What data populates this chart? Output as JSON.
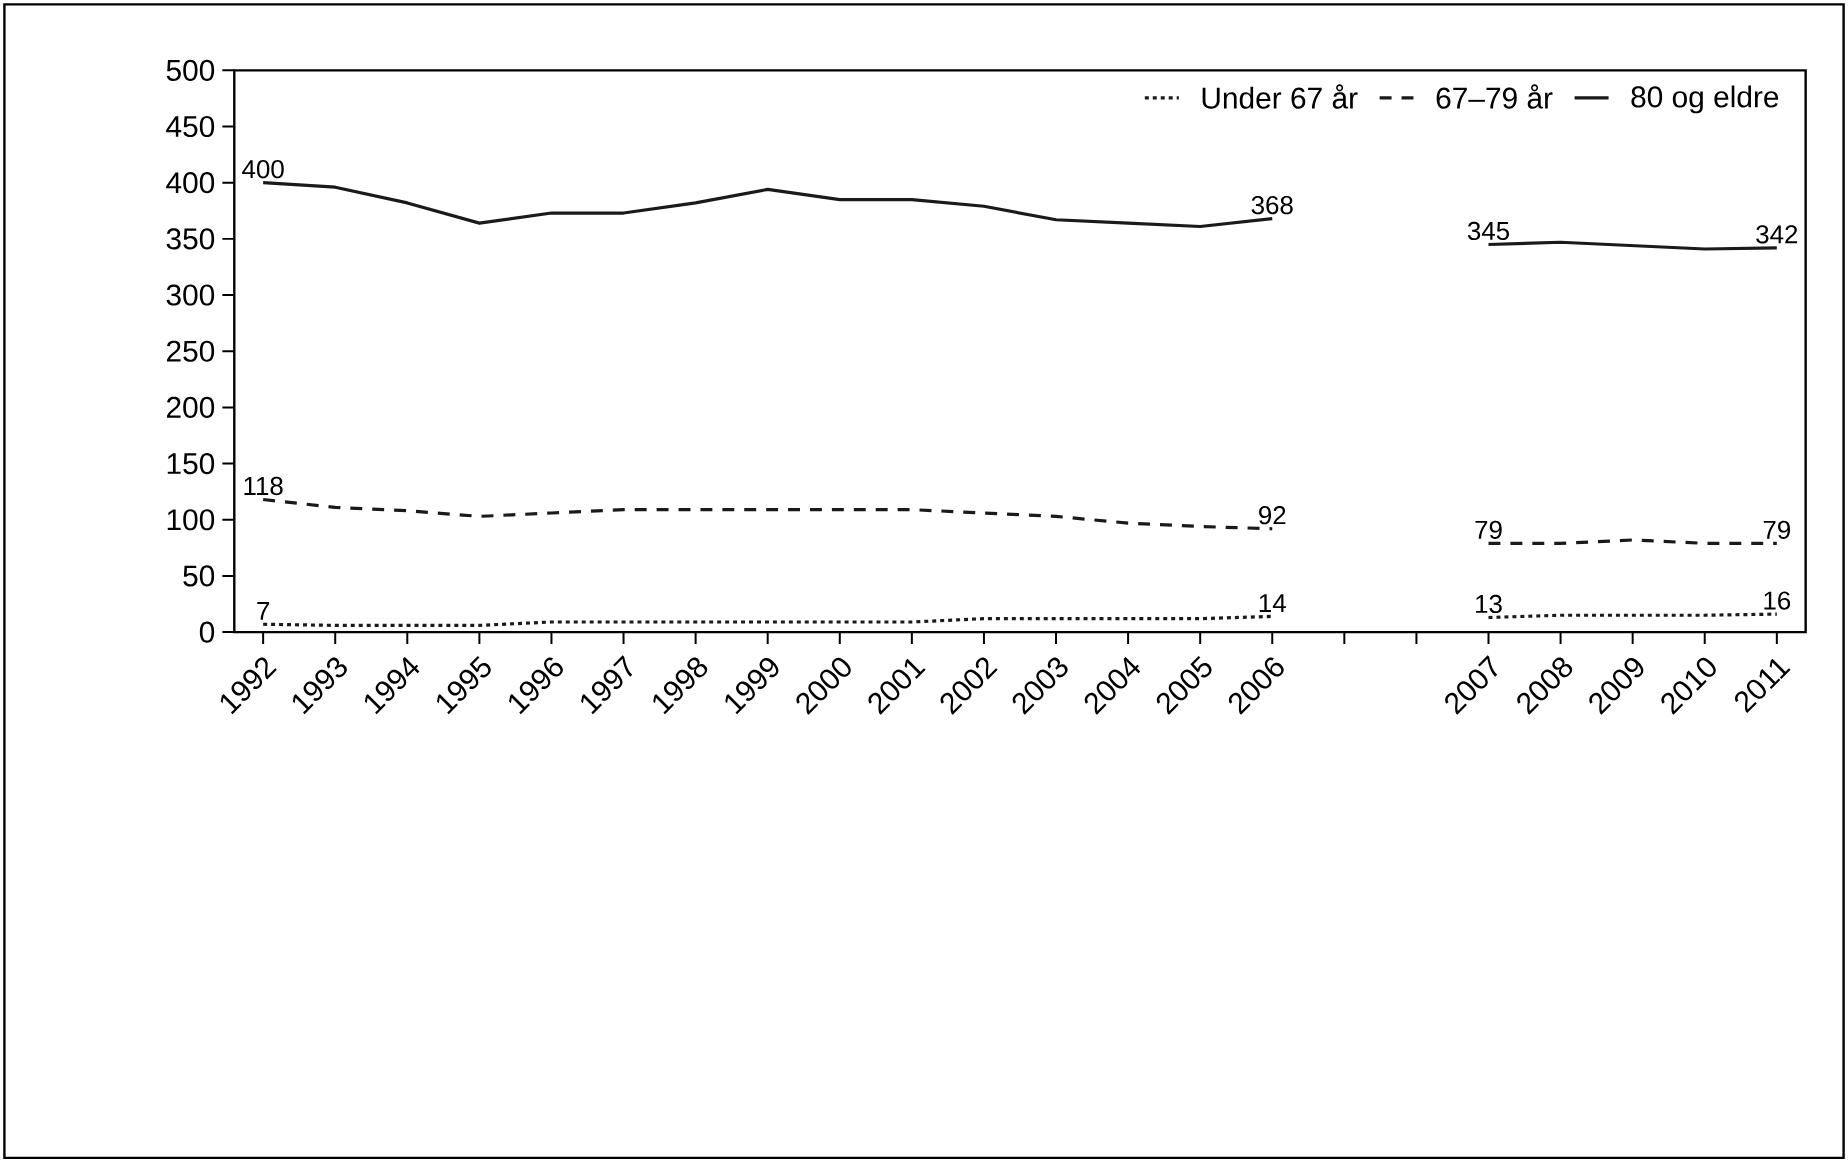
{
  "chart_data": {
    "type": "line",
    "categories": [
      "1992",
      "1993",
      "1994",
      "1995",
      "1996",
      "1997",
      "1998",
      "1999",
      "2000",
      "2001",
      "2002",
      "2003",
      "2004",
      "2005",
      "2006",
      null,
      null,
      "2007",
      "2008",
      "2009",
      "2010",
      "2011"
    ],
    "series": [
      {
        "name": "Under 67 år",
        "color": "#1a1a1a",
        "line_style": "dotted",
        "values": [
          7,
          6,
          6,
          6,
          9,
          9,
          9,
          9,
          9,
          9,
          12,
          12,
          12,
          12,
          14,
          null,
          null,
          13,
          15,
          15,
          15,
          16
        ],
        "value_labels": [
          "7",
          null,
          null,
          null,
          null,
          null,
          null,
          null,
          null,
          null,
          null,
          null,
          null,
          null,
          "14",
          null,
          null,
          "13",
          null,
          null,
          null,
          "16"
        ]
      },
      {
        "name": "67–79 år",
        "color": "#1a1a1a",
        "line_style": "dashed",
        "values": [
          118,
          111,
          108,
          103,
          106,
          109,
          109,
          109,
          109,
          109,
          106,
          103,
          97,
          94,
          92,
          null,
          null,
          79,
          79,
          82,
          79,
          79
        ],
        "value_labels": [
          "118",
          null,
          null,
          null,
          null,
          null,
          null,
          null,
          null,
          null,
          null,
          null,
          null,
          null,
          "92",
          null,
          null,
          "79",
          null,
          null,
          null,
          "79"
        ]
      },
      {
        "name": "80 og eldre",
        "color": "#1a1a1a",
        "line_style": "solid",
        "values": [
          400,
          396,
          382,
          364,
          373,
          373,
          382,
          394,
          385,
          385,
          379,
          367,
          364,
          361,
          368,
          null,
          null,
          345,
          347,
          344,
          341,
          342
        ],
        "value_labels": [
          "400",
          null,
          null,
          null,
          null,
          null,
          null,
          null,
          null,
          null,
          null,
          null,
          null,
          null,
          "368",
          null,
          null,
          "345",
          null,
          null,
          null,
          "342"
        ]
      }
    ],
    "ylim": [
      0,
      500
    ],
    "yticks": [
      0,
      50,
      100,
      150,
      200,
      250,
      300,
      350,
      400,
      450,
      500
    ],
    "grid": false,
    "legend": "top right"
  }
}
